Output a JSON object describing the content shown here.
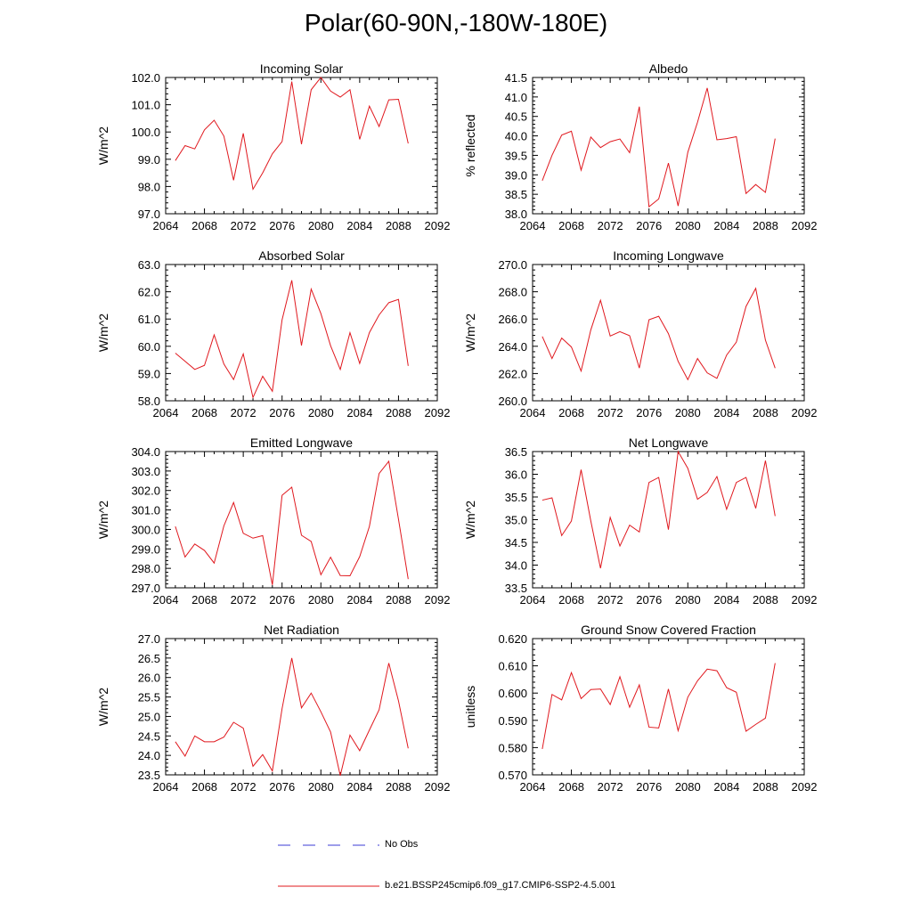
{
  "title": "Polar(60-90N,-180W-180E)",
  "legend": [
    {
      "label": "No Obs",
      "color": "#3b3bd6",
      "style": "dashed"
    },
    {
      "label": "b.e21.BSSP245cmip6.f09_g17.CMIP6-SSP2-4.5.001",
      "color": "#e0181e",
      "style": "solid"
    }
  ],
  "colors": {
    "series": "#e0181e",
    "axis": "#000000"
  },
  "chart_data": [
    {
      "type": "line",
      "title": "Incoming Solar",
      "ylabel": "W/m^2",
      "xlabel": "",
      "xlim": [
        2064,
        2092
      ],
      "ylim": [
        97.0,
        102.0
      ],
      "xticks": [
        2064,
        2068,
        2072,
        2076,
        2080,
        2084,
        2088,
        2092
      ],
      "yticks": [
        "97.0",
        "98.0",
        "99.0",
        "100.0",
        "101.0",
        "102.0"
      ],
      "x": [
        2065,
        2066,
        2067,
        2068,
        2069,
        2070,
        2071,
        2072,
        2073,
        2074,
        2075,
        2076,
        2077,
        2078,
        2079,
        2080,
        2081,
        2082,
        2083,
        2084,
        2085,
        2086,
        2087,
        2088,
        2089
      ],
      "series": [
        {
          "values": [
            98.95,
            99.5,
            99.38,
            100.08,
            100.43,
            99.85,
            98.23,
            99.95,
            97.9,
            98.5,
            99.2,
            99.65,
            101.85,
            99.55,
            101.55,
            102.0,
            101.5,
            101.28,
            101.55,
            99.73,
            100.95,
            100.2,
            101.18,
            101.2,
            99.58
          ]
        }
      ]
    },
    {
      "type": "line",
      "title": "Albedo",
      "ylabel": "% reflected",
      "xlabel": "",
      "xlim": [
        2064,
        2092
      ],
      "ylim": [
        38.0,
        41.5
      ],
      "xticks": [
        2064,
        2068,
        2072,
        2076,
        2080,
        2084,
        2088,
        2092
      ],
      "yticks": [
        "38.0",
        "38.5",
        "39.0",
        "39.5",
        "40.0",
        "40.5",
        "41.0",
        "41.5"
      ],
      "x": [
        2065,
        2066,
        2067,
        2068,
        2069,
        2070,
        2071,
        2072,
        2073,
        2074,
        2075,
        2076,
        2077,
        2078,
        2079,
        2080,
        2081,
        2082,
        2083,
        2084,
        2085,
        2086,
        2087,
        2088,
        2089
      ],
      "series": [
        {
          "values": [
            38.85,
            39.5,
            40.02,
            40.12,
            39.12,
            39.97,
            39.7,
            39.85,
            39.92,
            39.57,
            40.75,
            38.18,
            38.38,
            39.3,
            38.2,
            39.58,
            40.35,
            41.23,
            39.9,
            39.93,
            39.98,
            38.52,
            38.75,
            38.55,
            39.93
          ]
        }
      ]
    },
    {
      "type": "line",
      "title": "Absorbed Solar",
      "ylabel": "W/m^2",
      "xlabel": "",
      "xlim": [
        2064,
        2092
      ],
      "ylim": [
        58.0,
        63.0
      ],
      "xticks": [
        2064,
        2068,
        2072,
        2076,
        2080,
        2084,
        2088,
        2092
      ],
      "yticks": [
        "58.0",
        "59.0",
        "60.0",
        "61.0",
        "62.0",
        "63.0"
      ],
      "x": [
        2065,
        2066,
        2067,
        2068,
        2069,
        2070,
        2071,
        2072,
        2073,
        2074,
        2075,
        2076,
        2077,
        2078,
        2079,
        2080,
        2081,
        2082,
        2083,
        2084,
        2085,
        2086,
        2087,
        2088,
        2089
      ],
      "series": [
        {
          "values": [
            59.75,
            59.45,
            59.15,
            59.3,
            60.42,
            59.35,
            58.78,
            59.72,
            58.12,
            58.9,
            58.35,
            60.97,
            62.42,
            60.03,
            62.1,
            61.2,
            60.02,
            59.15,
            60.5,
            59.37,
            60.5,
            61.15,
            61.6,
            61.72,
            59.28
          ]
        }
      ]
    },
    {
      "type": "line",
      "title": "Incoming Longwave",
      "ylabel": "W/m^2",
      "xlabel": "",
      "xlim": [
        2064,
        2092
      ],
      "ylim": [
        260.0,
        270.0
      ],
      "xticks": [
        2064,
        2068,
        2072,
        2076,
        2080,
        2084,
        2088,
        2092
      ],
      "yticks": [
        "260.0",
        "262.0",
        "264.0",
        "266.0",
        "268.0",
        "270.0"
      ],
      "x": [
        2065,
        2066,
        2067,
        2068,
        2069,
        2070,
        2071,
        2072,
        2073,
        2074,
        2075,
        2076,
        2077,
        2078,
        2079,
        2080,
        2081,
        2082,
        2083,
        2084,
        2085,
        2086,
        2087,
        2088,
        2089
      ],
      "series": [
        {
          "values": [
            264.72,
            263.1,
            264.6,
            263.95,
            262.18,
            265.2,
            267.38,
            264.75,
            265.07,
            264.78,
            262.4,
            265.95,
            266.2,
            264.93,
            262.9,
            261.55,
            263.1,
            262.05,
            261.65,
            263.35,
            264.3,
            266.92,
            268.25,
            264.45,
            262.4
          ]
        }
      ]
    },
    {
      "type": "line",
      "title": "Emitted Longwave",
      "ylabel": "W/m^2",
      "xlabel": "",
      "xlim": [
        2064,
        2092
      ],
      "ylim": [
        297.0,
        304.0
      ],
      "xticks": [
        2064,
        2068,
        2072,
        2076,
        2080,
        2084,
        2088,
        2092
      ],
      "yticks": [
        "297.0",
        "298.0",
        "299.0",
        "300.0",
        "301.0",
        "302.0",
        "303.0",
        "304.0"
      ],
      "x": [
        2065,
        2066,
        2067,
        2068,
        2069,
        2070,
        2071,
        2072,
        2073,
        2074,
        2075,
        2076,
        2077,
        2078,
        2079,
        2080,
        2081,
        2082,
        2083,
        2084,
        2085,
        2086,
        2087,
        2088,
        2089
      ],
      "series": [
        {
          "values": [
            300.15,
            298.58,
            299.25,
            298.92,
            298.27,
            300.18,
            301.38,
            299.8,
            299.55,
            299.68,
            297.15,
            301.75,
            302.17,
            299.7,
            299.38,
            297.67,
            298.57,
            297.63,
            297.62,
            298.6,
            300.15,
            302.87,
            303.5,
            300.52,
            297.45
          ]
        }
      ]
    },
    {
      "type": "line",
      "title": "Net Longwave",
      "ylabel": "W/m^2",
      "xlabel": "",
      "xlim": [
        2064,
        2092
      ],
      "ylim": [
        33.5,
        36.5
      ],
      "xticks": [
        2064,
        2068,
        2072,
        2076,
        2080,
        2084,
        2088,
        2092
      ],
      "yticks": [
        "33.5",
        "34.0",
        "34.5",
        "35.0",
        "35.5",
        "36.0",
        "36.5"
      ],
      "x": [
        2065,
        2066,
        2067,
        2068,
        2069,
        2070,
        2071,
        2072,
        2073,
        2074,
        2075,
        2076,
        2077,
        2078,
        2079,
        2080,
        2081,
        2082,
        2083,
        2084,
        2085,
        2086,
        2087,
        2088,
        2089
      ],
      "series": [
        {
          "values": [
            35.43,
            35.48,
            34.65,
            34.97,
            36.1,
            34.97,
            33.93,
            35.05,
            34.42,
            34.88,
            34.73,
            35.82,
            35.93,
            34.78,
            36.5,
            36.13,
            35.45,
            35.6,
            35.95,
            35.23,
            35.82,
            35.93,
            35.25,
            36.3,
            35.08
          ]
        }
      ]
    },
    {
      "type": "line",
      "title": "Net Radiation",
      "ylabel": "W/m^2",
      "xlabel": "",
      "xlim": [
        2064,
        2092
      ],
      "ylim": [
        23.5,
        27.0
      ],
      "xticks": [
        2064,
        2068,
        2072,
        2076,
        2080,
        2084,
        2088,
        2092
      ],
      "yticks": [
        "23.5",
        "24.0",
        "24.5",
        "25.0",
        "25.5",
        "26.0",
        "26.5",
        "27.0"
      ],
      "x": [
        2065,
        2066,
        2067,
        2068,
        2069,
        2070,
        2071,
        2072,
        2073,
        2074,
        2075,
        2076,
        2077,
        2078,
        2079,
        2080,
        2081,
        2082,
        2083,
        2084,
        2085,
        2086,
        2087,
        2088,
        2089
      ],
      "series": [
        {
          "values": [
            24.35,
            23.98,
            24.5,
            24.35,
            24.35,
            24.47,
            24.85,
            24.7,
            23.72,
            24.02,
            23.6,
            25.2,
            26.5,
            25.22,
            25.6,
            25.12,
            24.6,
            23.48,
            24.52,
            24.12,
            24.65,
            25.17,
            26.37,
            25.4,
            24.18
          ]
        }
      ]
    },
    {
      "type": "line",
      "title": "Ground Snow Covered Fraction",
      "ylabel": "unitless",
      "xlabel": "",
      "xlim": [
        2064,
        2092
      ],
      "ylim": [
        0.57,
        0.62
      ],
      "xticks": [
        2064,
        2068,
        2072,
        2076,
        2080,
        2084,
        2088,
        2092
      ],
      "yticks": [
        "0.570",
        "0.580",
        "0.590",
        "0.600",
        "0.610",
        "0.620"
      ],
      "x": [
        2065,
        2066,
        2067,
        2068,
        2069,
        2070,
        2071,
        2072,
        2073,
        2074,
        2075,
        2076,
        2077,
        2078,
        2079,
        2080,
        2081,
        2082,
        2083,
        2084,
        2085,
        2086,
        2087,
        2088,
        2089
      ],
      "series": [
        {
          "values": [
            0.5795,
            0.5995,
            0.5975,
            0.6075,
            0.598,
            0.6013,
            0.6015,
            0.5958,
            0.606,
            0.5948,
            0.603,
            0.5875,
            0.5872,
            0.6015,
            0.5862,
            0.5985,
            0.6045,
            0.6088,
            0.6082,
            0.602,
            0.6003,
            0.586,
            0.5885,
            0.5908,
            0.611
          ]
        }
      ]
    }
  ]
}
